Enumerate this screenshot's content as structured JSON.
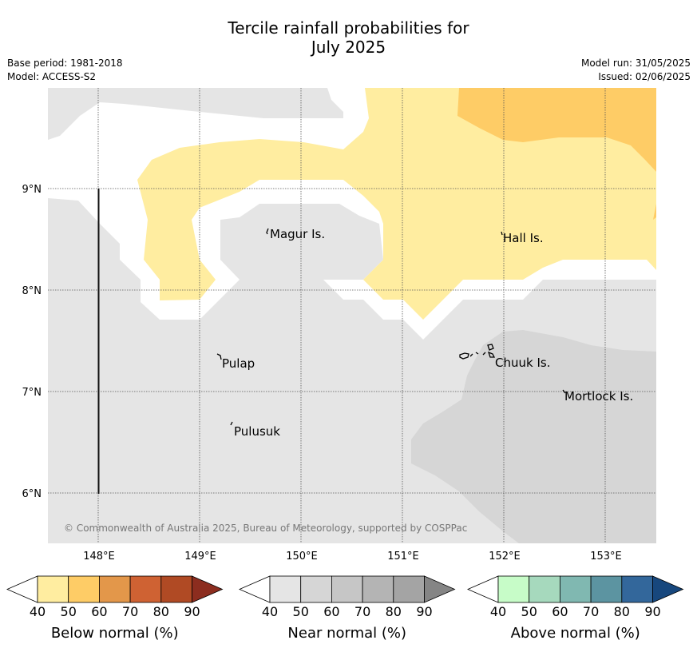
{
  "title": {
    "line1": "Tercile rainfall probabilities for",
    "line2": "July 2025"
  },
  "meta": {
    "base_period": "Base period: 1981-2018",
    "model": "Model: ACCESS-S2",
    "model_run": "Model run: 31/05/2025",
    "issued": "Issued: 02/06/2025"
  },
  "map": {
    "lat_labels": [
      "9°N",
      "8°N",
      "7°N",
      "6°N"
    ],
    "lon_labels": [
      "148°E",
      "149°E",
      "150°E",
      "151°E",
      "152°E",
      "153°E"
    ],
    "places": [
      {
        "name": "Magur Is."
      },
      {
        "name": "Hall Is."
      },
      {
        "name": "Pulap"
      },
      {
        "name": "Chuuk Is."
      },
      {
        "name": "Mortlock Is."
      },
      {
        "name": "Pulusuk"
      }
    ],
    "copyright": "© Commonwealth of Australia 2025, Bureau of Meteorology, supported by COSPPac",
    "colors": {
      "near_normal_40": "#e5e5e5",
      "near_normal_50": "#d6d6d6",
      "below_normal_40": "#ffeda0",
      "below_normal_50": "#fecc66"
    }
  },
  "legends": [
    {
      "label": "Below normal (%)",
      "ticks": [
        "40",
        "50",
        "60",
        "70",
        "80",
        "90"
      ],
      "colors": [
        "#ffffff",
        "#ffeda0",
        "#fecc66",
        "#e3974a",
        "#cf6233",
        "#b04a24",
        "#8c2d1f"
      ]
    },
    {
      "label": "Near normal (%)",
      "ticks": [
        "40",
        "50",
        "60",
        "70",
        "80",
        "90"
      ],
      "colors": [
        "#ffffff",
        "#e5e5e5",
        "#d6d6d6",
        "#c6c6c6",
        "#b4b4b4",
        "#a4a4a4",
        "#858585"
      ]
    },
    {
      "label": "Above normal (%)",
      "ticks": [
        "40",
        "50",
        "60",
        "70",
        "80",
        "90"
      ],
      "colors": [
        "#ffffff",
        "#c7fcc8",
        "#a6d9bd",
        "#80b8b1",
        "#5c94a1",
        "#33679b",
        "#17477d"
      ]
    }
  ]
}
